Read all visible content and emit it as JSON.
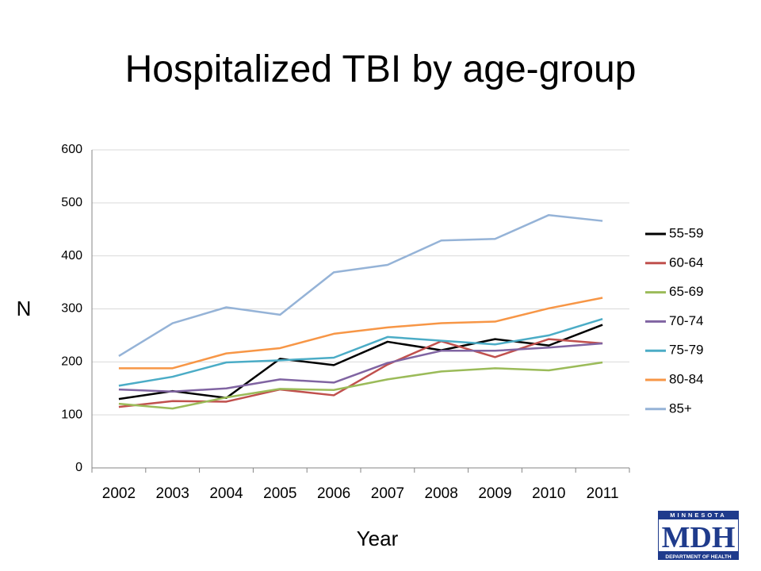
{
  "slide": {
    "title": "Hospitalized TBI by age-group"
  },
  "chart_data": {
    "type": "line",
    "title": "Hospitalized TBI by age-group",
    "xlabel": "Year",
    "ylabel": "N",
    "ylim": [
      0,
      600
    ],
    "yticks": [
      "0",
      "100",
      "200",
      "300",
      "400",
      "500",
      "600"
    ],
    "categories": [
      "2002",
      "2003",
      "2004",
      "2005",
      "2006",
      "2007",
      "2008",
      "2009",
      "2010",
      "2011"
    ],
    "grid": "horizontal",
    "legend_position": "right",
    "series": [
      {
        "name": "55-59",
        "color": "#000000",
        "values": [
          130,
          145,
          132,
          206,
          194,
          238,
          222,
          243,
          231,
          270
        ]
      },
      {
        "name": "60-64",
        "color": "#C0504D",
        "values": [
          115,
          126,
          125,
          148,
          137,
          195,
          239,
          209,
          243,
          235
        ]
      },
      {
        "name": "65-69",
        "color": "#9BBB59",
        "values": [
          121,
          112,
          133,
          149,
          147,
          167,
          182,
          188,
          184,
          199
        ]
      },
      {
        "name": "70-74",
        "color": "#8064A2",
        "values": [
          148,
          144,
          150,
          167,
          161,
          198,
          221,
          221,
          227,
          235
        ]
      },
      {
        "name": "75-79",
        "color": "#4BACC6",
        "values": [
          155,
          172,
          199,
          203,
          208,
          247,
          240,
          233,
          250,
          281
        ]
      },
      {
        "name": "80-84",
        "color": "#F79646",
        "values": [
          188,
          188,
          216,
          226,
          253,
          265,
          273,
          276,
          301,
          321
        ]
      },
      {
        "name": "85+",
        "color": "#95B3D7",
        "values": [
          211,
          273,
          303,
          289,
          369,
          383,
          429,
          432,
          477,
          466
        ]
      }
    ]
  },
  "logo": {
    "top_text": "MINNESOTA",
    "main_text": "MDH",
    "bottom_text": "DEPARTMENT OF HEALTH",
    "color": "#1F3B8C"
  }
}
